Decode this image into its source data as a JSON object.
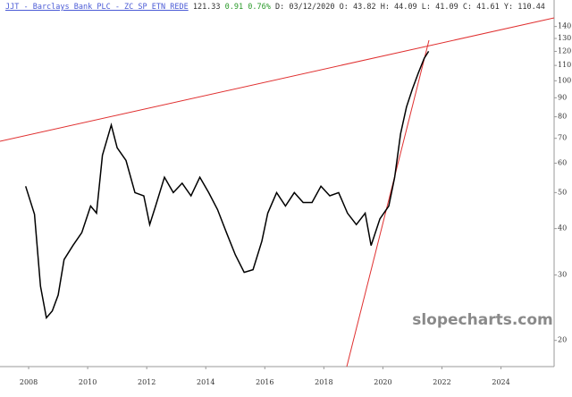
{
  "header": {
    "symbol": "JJT - Barclays Bank PLC - ZC SP ETN REDE",
    "last": "121.33",
    "change": "0.91",
    "change_pct": "0.76%",
    "ohlc": "D: 03/12/2020 O:  43.82 H:  44.09 L:  41.09 C:  41.61 Y: 110.44"
  },
  "watermark": "slopecharts.com",
  "chart_data": {
    "type": "line",
    "log_scale": true,
    "color": "#000000",
    "x": [
      2007.9,
      2008.2,
      2008.4,
      2008.6,
      2008.8,
      2009.0,
      2009.2,
      2009.5,
      2009.8,
      2010.1,
      2010.3,
      2010.5,
      2010.8,
      2011.0,
      2011.3,
      2011.6,
      2011.9,
      2012.1,
      2012.3,
      2012.6,
      2012.9,
      2013.2,
      2013.5,
      2013.8,
      2014.1,
      2014.4,
      2014.7,
      2015.0,
      2015.3,
      2015.6,
      2015.9,
      2016.1,
      2016.4,
      2016.7,
      2017.0,
      2017.3,
      2017.6,
      2017.9,
      2018.2,
      2018.5,
      2018.8,
      2019.1,
      2019.4,
      2019.6,
      2019.9,
      2020.2,
      2020.4,
      2020.6,
      2020.8,
      2021.0,
      2021.2,
      2021.4,
      2021.55
    ],
    "values": [
      52,
      43.7,
      28,
      23,
      24,
      26.5,
      33,
      36,
      39,
      46,
      44,
      63,
      76,
      66,
      61,
      50,
      49,
      41,
      46,
      55,
      50,
      53,
      49,
      55,
      50,
      45,
      39,
      34,
      30.5,
      31,
      37,
      44,
      50,
      46,
      50,
      47,
      47,
      52,
      49,
      50,
      44,
      41,
      44,
      36,
      42.5,
      46,
      55,
      72,
      85,
      95,
      105,
      115,
      120
    ],
    "xlim": [
      2007.03,
      2025.8
    ],
    "ylim": [
      17,
      165
    ],
    "xticks": [
      2008,
      2010,
      2012,
      2014,
      2016,
      2018,
      2020,
      2022,
      2024
    ],
    "yticks": [
      20,
      30,
      40,
      50,
      60,
      70,
      80,
      90,
      100,
      110,
      120,
      130,
      140
    ]
  }
}
